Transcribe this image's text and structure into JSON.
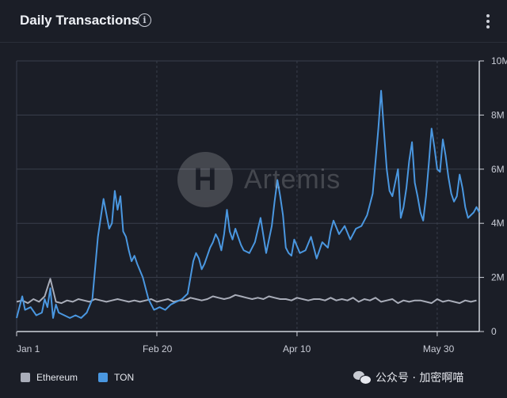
{
  "header": {
    "title": "Daily Transactions",
    "info_icon": "info-icon",
    "menu_icon": "kebab-menu-icon"
  },
  "watermark": {
    "logo_text": "Artemis",
    "source_text": "公众号 · 加密啊喵"
  },
  "colors": {
    "background": "#1b1e27",
    "grid": "#3a3f4c",
    "ethereum": "#a9adb9",
    "ton": "#4a97e0"
  },
  "chart_data": {
    "type": "line",
    "title": "Daily Transactions",
    "x_ticks": [
      "Jan 1",
      "Feb 20",
      "Apr 10",
      "May 30"
    ],
    "y_ticks": [
      "0",
      "2M",
      "4M",
      "6M",
      "8M",
      "10M"
    ],
    "ylim": [
      0,
      10000000
    ],
    "x_range": [
      "Jan 1",
      "Jun 14"
    ],
    "grid": true,
    "legend_position": "bottom-left",
    "series": [
      {
        "name": "Ethereum",
        "x": [
          "Jan 1",
          "Jan 3",
          "Jan 5",
          "Jan 7",
          "Jan 9",
          "Jan 11",
          "Jan 13",
          "Jan 15",
          "Jan 17",
          "Jan 19",
          "Jan 21",
          "Jan 23",
          "Jan 25",
          "Jan 27",
          "Jan 29",
          "Jan 31",
          "Feb 2",
          "Feb 4",
          "Feb 6",
          "Feb 8",
          "Feb 10",
          "Feb 12",
          "Feb 14",
          "Feb 16",
          "Feb 18",
          "Feb 20",
          "Feb 22",
          "Feb 24",
          "Feb 26",
          "Feb 28",
          "Mar 1",
          "Mar 3",
          "Mar 5",
          "Mar 7",
          "Mar 9",
          "Mar 11",
          "Mar 13",
          "Mar 15",
          "Mar 17",
          "Mar 19",
          "Mar 21",
          "Mar 23",
          "Mar 25",
          "Mar 27",
          "Mar 29",
          "Mar 31",
          "Apr 2",
          "Apr 4",
          "Apr 6",
          "Apr 8",
          "Apr 10",
          "Apr 12",
          "Apr 14",
          "Apr 16",
          "Apr 18",
          "Apr 20",
          "Apr 22",
          "Apr 24",
          "Apr 26",
          "Apr 28",
          "Apr 30",
          "May 2",
          "May 4",
          "May 6",
          "May 8",
          "May 10",
          "May 12",
          "May 14",
          "May 16",
          "May 18",
          "May 20",
          "May 22",
          "May 24",
          "May 26",
          "May 28",
          "May 30",
          "Jun 1",
          "Jun 3",
          "Jun 5",
          "Jun 7",
          "Jun 9",
          "Jun 11",
          "Jun 13"
        ],
        "values": [
          1100000,
          1150000,
          1050000,
          1200000,
          1100000,
          1300000,
          1950000,
          1100000,
          1050000,
          1150000,
          1100000,
          1200000,
          1150000,
          1100000,
          1200000,
          1150000,
          1100000,
          1150000,
          1200000,
          1150000,
          1100000,
          1150000,
          1100000,
          1150000,
          1200000,
          1100000,
          1150000,
          1200000,
          1100000,
          1150000,
          1150000,
          1250000,
          1200000,
          1150000,
          1200000,
          1300000,
          1250000,
          1200000,
          1250000,
          1350000,
          1300000,
          1250000,
          1200000,
          1250000,
          1200000,
          1300000,
          1250000,
          1200000,
          1200000,
          1150000,
          1250000,
          1200000,
          1150000,
          1200000,
          1200000,
          1150000,
          1250000,
          1150000,
          1200000,
          1150000,
          1250000,
          1100000,
          1200000,
          1150000,
          1250000,
          1100000,
          1150000,
          1200000,
          1050000,
          1150000,
          1100000,
          1150000,
          1150000,
          1100000,
          1050000,
          1200000,
          1100000,
          1150000,
          1100000,
          1050000,
          1150000,
          1100000,
          1150000
        ]
      },
      {
        "name": "TON",
        "x": [
          "Jan 1",
          "Jan 2",
          "Jan 3",
          "Jan 4",
          "Jan 6",
          "Jan 8",
          "Jan 10",
          "Jan 11",
          "Jan 12",
          "Jan 13",
          "Jan 14",
          "Jan 15",
          "Jan 16",
          "Jan 18",
          "Jan 20",
          "Jan 22",
          "Jan 24",
          "Jan 26",
          "Jan 28",
          "Jan 30",
          "Feb 1",
          "Feb 3",
          "Feb 4",
          "Feb 5",
          "Feb 6",
          "Feb 7",
          "Feb 8",
          "Feb 9",
          "Feb 10",
          "Feb 11",
          "Feb 12",
          "Feb 13",
          "Feb 15",
          "Feb 17",
          "Feb 18",
          "Feb 19",
          "Feb 21",
          "Feb 23",
          "Feb 25",
          "Feb 27",
          "Feb 29",
          "Mar 2",
          "Mar 4",
          "Mar 5",
          "Mar 6",
          "Mar 7",
          "Mar 8",
          "Mar 9",
          "Mar 10",
          "Mar 11",
          "Mar 12",
          "Mar 13",
          "Mar 14",
          "Mar 15",
          "Mar 16",
          "Mar 17",
          "Mar 18",
          "Mar 19",
          "Mar 20",
          "Mar 21",
          "Mar 22",
          "Mar 24",
          "Mar 26",
          "Mar 28",
          "Mar 30",
          "Apr 1",
          "Apr 2",
          "Apr 3",
          "Apr 4",
          "Apr 5",
          "Apr 6",
          "Apr 7",
          "Apr 8",
          "Apr 9",
          "Apr 11",
          "Apr 13",
          "Apr 15",
          "Apr 17",
          "Apr 19",
          "Apr 21",
          "Apr 22",
          "Apr 23",
          "Apr 25",
          "Apr 27",
          "Apr 29",
          "May 1",
          "May 3",
          "May 5",
          "May 7",
          "May 9",
          "May 10",
          "May 11",
          "May 12",
          "May 13",
          "May 14",
          "May 15",
          "May 16",
          "May 17",
          "May 18",
          "May 19",
          "May 20",
          "May 21",
          "May 22",
          "May 23",
          "May 24",
          "May 25",
          "May 26",
          "May 27",
          "May 28",
          "May 29",
          "May 30",
          "May 31",
          "Jun 1",
          "Jun 2",
          "Jun 3",
          "Jun 4",
          "Jun 5",
          "Jun 6",
          "Jun 7",
          "Jun 8",
          "Jun 9",
          "Jun 10",
          "Jun 11",
          "Jun 12",
          "Jun 13",
          "Jun 14"
        ],
        "values": [
          500000,
          900000,
          1300000,
          800000,
          900000,
          600000,
          700000,
          1200000,
          900000,
          1600000,
          500000,
          1000000,
          700000,
          600000,
          500000,
          600000,
          500000,
          700000,
          1200000,
          3500000,
          4900000,
          3800000,
          4000000,
          5200000,
          4500000,
          5000000,
          3700000,
          3500000,
          3000000,
          2600000,
          2800000,
          2500000,
          2000000,
          1200000,
          1000000,
          800000,
          900000,
          800000,
          1000000,
          1100000,
          1200000,
          1400000,
          2600000,
          2900000,
          2700000,
          2300000,
          2500000,
          2800000,
          3100000,
          3300000,
          3600000,
          3400000,
          3000000,
          3600000,
          4500000,
          3700000,
          3400000,
          3800000,
          3500000,
          3200000,
          3000000,
          2900000,
          3300000,
          4200000,
          2900000,
          3900000,
          4800000,
          5600000,
          5000000,
          4300000,
          3100000,
          2900000,
          2800000,
          3400000,
          2900000,
          3000000,
          3500000,
          2700000,
          3300000,
          3100000,
          3700000,
          4100000,
          3600000,
          3900000,
          3400000,
          3800000,
          3900000,
          4300000,
          5100000,
          7500000,
          8900000,
          7400000,
          6000000,
          5200000,
          5000000,
          5500000,
          6000000,
          4200000,
          4600000,
          5300000,
          6300000,
          7000000,
          5500000,
          5000000,
          4400000,
          4100000,
          5000000,
          6200000,
          7500000,
          6800000,
          6000000,
          5900000,
          7100000,
          6500000,
          5700000,
          5100000,
          4800000,
          5000000,
          5800000,
          5300000,
          4600000,
          4200000,
          4300000,
          4400000,
          4600000,
          4400000
        ]
      }
    ]
  }
}
